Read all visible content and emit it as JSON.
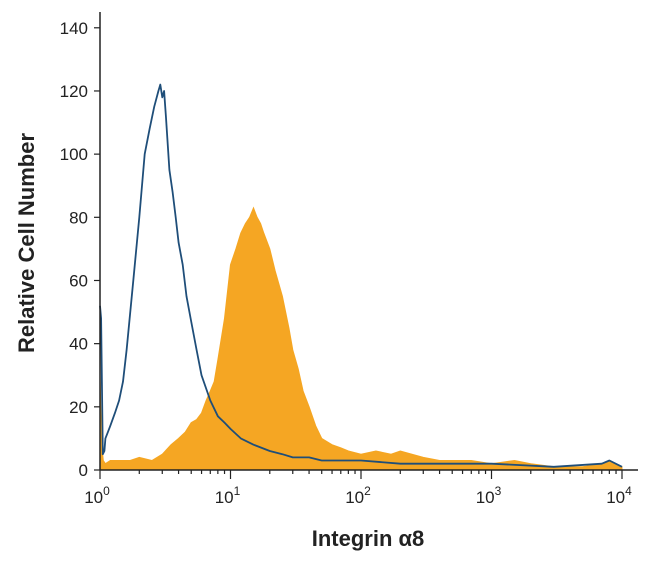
{
  "chart_data": {
    "type": "area",
    "title": "",
    "xlabel": "Integrin α8",
    "ylabel": "Relative Cell Number",
    "x_scale": "log",
    "xlim": [
      1,
      10000
    ],
    "ylim": [
      0,
      145
    ],
    "x_ticks": [
      {
        "value": 1,
        "base": "10",
        "exp": "0"
      },
      {
        "value": 10,
        "base": "10",
        "exp": "1"
      },
      {
        "value": 100,
        "base": "10",
        "exp": "2"
      },
      {
        "value": 1000,
        "base": "10",
        "exp": "3"
      },
      {
        "value": 10000,
        "base": "10",
        "exp": "4"
      }
    ],
    "y_ticks": [
      0,
      20,
      40,
      60,
      80,
      100,
      120,
      140
    ],
    "grid": false,
    "legend": "none",
    "series": [
      {
        "style": "filled",
        "color": "#F5A623",
        "x": [
          1.0,
          1.03,
          1.06,
          1.1,
          1.2,
          1.4,
          1.7,
          2.0,
          2.5,
          3.0,
          3.5,
          4.0,
          4.5,
          5.0,
          5.5,
          6.0,
          6.5,
          7.0,
          7.5,
          8.0,
          9.0,
          10.0,
          11.0,
          12.0,
          13.0,
          14.0,
          15.0,
          16.0,
          17.0,
          18.0,
          20.0,
          22.0,
          25.0,
          28.0,
          30.0,
          33.0,
          36.0,
          40.0,
          45.0,
          50.0,
          60.0,
          70.0,
          80.0,
          100.0,
          130.0,
          170.0,
          200.0,
          300.0,
          400.0,
          500.0,
          700.0,
          1000.0,
          1500.0,
          2000.0,
          3000.0,
          5000.0,
          7000.0,
          8000.0,
          10000.0
        ],
        "y": [
          30,
          8,
          3,
          2,
          3,
          3,
          3,
          4,
          3,
          5,
          8,
          10,
          12,
          15,
          16,
          18,
          22,
          25,
          28,
          35,
          48,
          65,
          70,
          75,
          78,
          80,
          83,
          80,
          78,
          75,
          70,
          63,
          55,
          45,
          38,
          32,
          25,
          20,
          14,
          10,
          8,
          7,
          6,
          5,
          6,
          5,
          6,
          4,
          3,
          3,
          3,
          2,
          3,
          2,
          1,
          1,
          2,
          3,
          1
        ]
      },
      {
        "style": "outline",
        "color": "#1F4E79",
        "x": [
          1.0,
          1.02,
          1.05,
          1.08,
          1.1,
          1.15,
          1.2,
          1.3,
          1.4,
          1.5,
          1.6,
          1.8,
          2.0,
          2.2,
          2.4,
          2.6,
          2.8,
          2.9,
          3.0,
          3.1,
          3.2,
          3.4,
          3.6,
          3.8,
          4.0,
          4.3,
          4.6,
          5.0,
          5.5,
          6.0,
          7.0,
          8.0,
          9.0,
          10.0,
          12.0,
          15.0,
          20.0,
          25.0,
          30.0,
          40.0,
          50.0,
          70.0,
          100.0,
          200.0,
          500.0,
          1000.0,
          3000.0,
          7000.0,
          8000.0,
          10000.0
        ],
        "y": [
          52,
          48,
          5,
          6,
          10,
          12,
          14,
          18,
          22,
          28,
          38,
          60,
          80,
          100,
          108,
          115,
          120,
          122,
          118,
          120,
          112,
          95,
          88,
          80,
          72,
          65,
          55,
          47,
          38,
          30,
          22,
          17,
          15,
          13,
          10,
          8,
          6,
          5,
          4,
          4,
          3,
          3,
          3,
          2,
          2,
          2,
          1,
          2,
          3,
          1
        ]
      }
    ]
  }
}
